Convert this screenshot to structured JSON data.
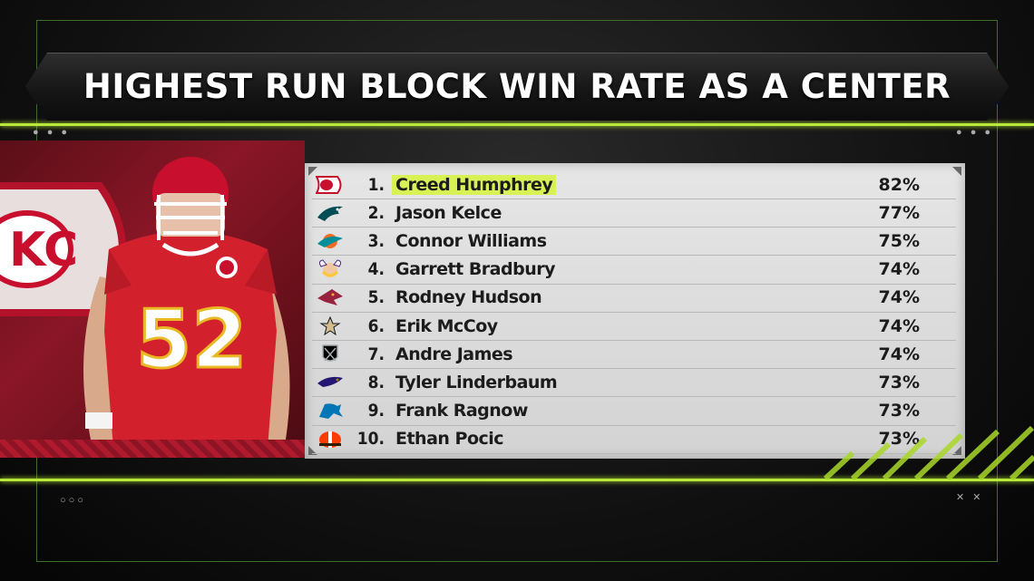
{
  "title": "HIGHEST RUN BLOCK WIN RATE AS A CENTER",
  "player_jersey_number": "52",
  "rows": [
    {
      "rank": "1.",
      "name": "Creed Humphrey",
      "pct": "82%",
      "team_icon": "chiefs-logo-icon",
      "highlight": true
    },
    {
      "rank": "2.",
      "name": "Jason Kelce",
      "pct": "77%",
      "team_icon": "eagles-logo-icon"
    },
    {
      "rank": "3.",
      "name": "Connor Williams",
      "pct": "75%",
      "team_icon": "dolphins-logo-icon"
    },
    {
      "rank": "4.",
      "name": "Garrett Bradbury",
      "pct": "74%",
      "team_icon": "vikings-logo-icon"
    },
    {
      "rank": "5.",
      "name": "Rodney Hudson",
      "pct": "74%",
      "team_icon": "cardinals-logo-icon"
    },
    {
      "rank": "6.",
      "name": "Erik McCoy",
      "pct": "74%",
      "team_icon": "saints-logo-icon"
    },
    {
      "rank": "7.",
      "name": "Andre James",
      "pct": "74%",
      "team_icon": "raiders-logo-icon"
    },
    {
      "rank": "8.",
      "name": "Tyler Linderbaum",
      "pct": "73%",
      "team_icon": "ravens-logo-icon"
    },
    {
      "rank": "9.",
      "name": "Frank Ragnow",
      "pct": "73%",
      "team_icon": "lions-logo-icon"
    },
    {
      "rank": "10.",
      "name": "Ethan Pocic",
      "pct": "73%",
      "team_icon": "browns-logo-icon"
    }
  ],
  "colors": {
    "accent": "#b8e83a",
    "chiefs_red": "#c8102e",
    "highlight": "#d8f255"
  }
}
